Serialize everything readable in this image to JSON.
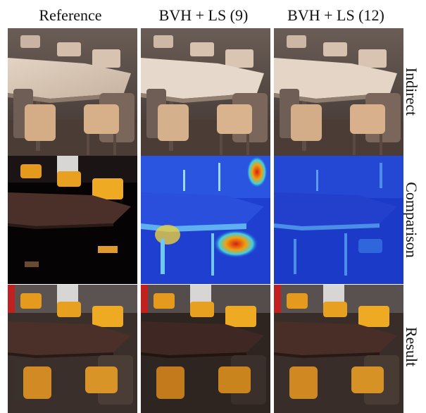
{
  "figure": {
    "columns": [
      {
        "label": "Reference"
      },
      {
        "label": "BVH + LS (9)"
      },
      {
        "label": "BVH + LS (12)"
      }
    ],
    "rows": [
      {
        "label": "Indirect"
      },
      {
        "label": "Comparison"
      },
      {
        "label": "Result"
      }
    ]
  },
  "colors": {
    "indirect_wall": "#5a4e48",
    "indirect_table": "#d9c7b6",
    "result_table": "#4a3029",
    "chair_orange": "#e59a1e",
    "heatmap_blue": "#1f3fd0",
    "heatmap_red": "#d82010",
    "background": "#ffffff"
  }
}
